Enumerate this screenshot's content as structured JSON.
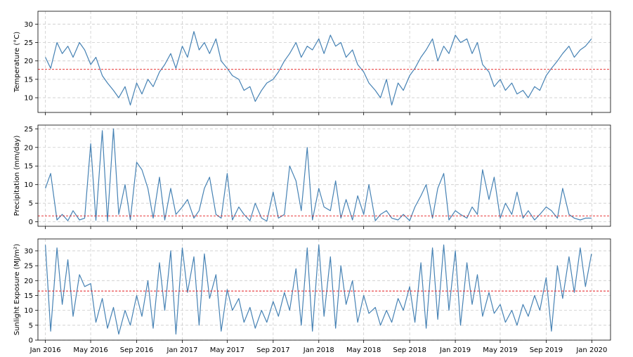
{
  "chart_data": [
    {
      "type": "line",
      "ylabel": "Temperature (°C)",
      "ylim": [
        6,
        33.5
      ],
      "yticks": [
        10,
        15,
        20,
        25,
        30
      ],
      "grid": true,
      "series_color": "#4682b4",
      "reference_line": {
        "value": 17.7,
        "color": "#e31a1c",
        "style": "dashed"
      },
      "series": [
        {
          "x": [
            "2016-01-01",
            "2016-01-15",
            "2016-02-01",
            "2016-02-15",
            "2016-03-01",
            "2016-03-15",
            "2016-04-01",
            "2016-04-15",
            "2016-05-01",
            "2016-05-15",
            "2016-06-01",
            "2016-06-15",
            "2016-07-01",
            "2016-07-15",
            "2016-08-01",
            "2016-08-15",
            "2016-09-01",
            "2016-09-15",
            "2016-10-01",
            "2016-10-15",
            "2016-11-01",
            "2016-11-15",
            "2016-12-01",
            "2016-12-15",
            "2017-01-01",
            "2017-01-15",
            "2017-02-01",
            "2017-02-15",
            "2017-03-01",
            "2017-03-15",
            "2017-04-01",
            "2017-04-15",
            "2017-05-01",
            "2017-05-15",
            "2017-06-01",
            "2017-06-15",
            "2017-07-01",
            "2017-07-15",
            "2017-08-01",
            "2017-08-15",
            "2017-09-01",
            "2017-09-15",
            "2017-10-01",
            "2017-10-15",
            "2017-11-01",
            "2017-11-15",
            "2017-12-01",
            "2017-12-15",
            "2018-01-01",
            "2018-01-15",
            "2018-02-01",
            "2018-02-15",
            "2018-03-01",
            "2018-03-15",
            "2018-04-01",
            "2018-04-15",
            "2018-05-01",
            "2018-05-15",
            "2018-06-01",
            "2018-06-15",
            "2018-07-01",
            "2018-07-15",
            "2018-08-01",
            "2018-08-15",
            "2018-09-01",
            "2018-09-15",
            "2018-10-01",
            "2018-10-15",
            "2018-11-01",
            "2018-11-15",
            "2018-12-01",
            "2018-12-15",
            "2019-01-01",
            "2019-01-15",
            "2019-02-01",
            "2019-02-15",
            "2019-03-01",
            "2019-03-15",
            "2019-04-01",
            "2019-04-15",
            "2019-05-01",
            "2019-05-15",
            "2019-06-01",
            "2019-06-15",
            "2019-07-01",
            "2019-07-15",
            "2019-08-01",
            "2019-08-15",
            "2019-09-01",
            "2019-09-15",
            "2019-10-01",
            "2019-10-15",
            "2019-11-01",
            "2019-11-15",
            "2019-12-01",
            "2019-12-15",
            "2019-12-31"
          ],
          "values": [
            21,
            18,
            25,
            22,
            24,
            21,
            25,
            23,
            19,
            21,
            16,
            14,
            12,
            10,
            13,
            8,
            14,
            11,
            15,
            13,
            17,
            19,
            22,
            18,
            24,
            21,
            28,
            23,
            25,
            22,
            26,
            20,
            18,
            16,
            15,
            12,
            13,
            9,
            12,
            14,
            15,
            17,
            20,
            22,
            25,
            21,
            24,
            23,
            26,
            22,
            27,
            24,
            25,
            21,
            23,
            19,
            17,
            14,
            12,
            10,
            15,
            8,
            14,
            12,
            16,
            18,
            21,
            23,
            26,
            20,
            24,
            22,
            27,
            25,
            26,
            22,
            25,
            19,
            17,
            13,
            15,
            12,
            14,
            11,
            12,
            10,
            13,
            12,
            16,
            18,
            20,
            22,
            24,
            21,
            23,
            24,
            26
          ]
        }
      ]
    },
    {
      "type": "line",
      "ylabel": "Precipitation (mm/day)",
      "ylim": [
        -1.2,
        26
      ],
      "yticks": [
        0,
        5,
        10,
        15,
        20,
        25
      ],
      "grid": true,
      "series_color": "#4682b4",
      "reference_line": {
        "value": 1.6,
        "color": "#e31a1c",
        "style": "dashed"
      },
      "series": [
        {
          "x": [
            "2016-01-01",
            "2016-01-15",
            "2016-02-01",
            "2016-02-15",
            "2016-03-01",
            "2016-03-15",
            "2016-04-01",
            "2016-04-15",
            "2016-05-01",
            "2016-05-15",
            "2016-06-01",
            "2016-06-15",
            "2016-07-01",
            "2016-07-15",
            "2016-08-01",
            "2016-08-15",
            "2016-09-01",
            "2016-09-15",
            "2016-10-01",
            "2016-10-15",
            "2016-11-01",
            "2016-11-15",
            "2016-12-01",
            "2016-12-15",
            "2017-01-01",
            "2017-01-15",
            "2017-02-01",
            "2017-02-15",
            "2017-03-01",
            "2017-03-15",
            "2017-04-01",
            "2017-04-15",
            "2017-05-01",
            "2017-05-15",
            "2017-06-01",
            "2017-06-15",
            "2017-07-01",
            "2017-07-15",
            "2017-08-01",
            "2017-08-15",
            "2017-09-01",
            "2017-09-15",
            "2017-10-01",
            "2017-10-15",
            "2017-11-01",
            "2017-11-15",
            "2017-12-01",
            "2017-12-15",
            "2018-01-01",
            "2018-01-15",
            "2018-02-01",
            "2018-02-15",
            "2018-03-01",
            "2018-03-15",
            "2018-04-01",
            "2018-04-15",
            "2018-05-01",
            "2018-05-15",
            "2018-06-01",
            "2018-06-15",
            "2018-07-01",
            "2018-07-15",
            "2018-08-01",
            "2018-08-15",
            "2018-09-01",
            "2018-09-15",
            "2018-10-01",
            "2018-10-15",
            "2018-11-01",
            "2018-11-15",
            "2018-12-01",
            "2018-12-15",
            "2019-01-01",
            "2019-01-15",
            "2019-02-01",
            "2019-02-15",
            "2019-03-01",
            "2019-03-15",
            "2019-04-01",
            "2019-04-15",
            "2019-05-01",
            "2019-05-15",
            "2019-06-01",
            "2019-06-15",
            "2019-07-01",
            "2019-07-15",
            "2019-08-01",
            "2019-08-15",
            "2019-09-01",
            "2019-09-15",
            "2019-10-01",
            "2019-10-15",
            "2019-11-01",
            "2019-11-15",
            "2019-12-01",
            "2019-12-15",
            "2019-12-31"
          ],
          "values": [
            9,
            13,
            0.5,
            2,
            0.3,
            3,
            0.5,
            1,
            21,
            0.4,
            24.5,
            0.2,
            25,
            2,
            10,
            0.5,
            16,
            14,
            9,
            1,
            12,
            0.5,
            9,
            2,
            4,
            6,
            1,
            3,
            9,
            12,
            2,
            1,
            13,
            0.5,
            4,
            2,
            0.3,
            5,
            1,
            0.2,
            8,
            1,
            2,
            15,
            11,
            3,
            20,
            0.5,
            9,
            4,
            3,
            11,
            1,
            6,
            0.5,
            7,
            2,
            10,
            0.3,
            2,
            3,
            1,
            0.5,
            2,
            0.3,
            4,
            7,
            10,
            1,
            9,
            13,
            0.5,
            3,
            2,
            1,
            4,
            2,
            14,
            6,
            12,
            1,
            5,
            2,
            8,
            1,
            3,
            0.5,
            2,
            4,
            3,
            1,
            9,
            2,
            1,
            0.5,
            1,
            1
          ]
        }
      ]
    },
    {
      "type": "line",
      "ylabel": "Sunlight Exposure (MJ/m²)",
      "ylim": [
        0,
        34
      ],
      "yticks": [
        0,
        5,
        10,
        15,
        20,
        25,
        30
      ],
      "grid": true,
      "series_color": "#4682b4",
      "reference_line": {
        "value": 16.5,
        "color": "#e31a1c",
        "style": "dashed"
      },
      "series": [
        {
          "x": [
            "2016-01-01",
            "2016-01-15",
            "2016-02-01",
            "2016-02-15",
            "2016-03-01",
            "2016-03-15",
            "2016-04-01",
            "2016-04-15",
            "2016-05-01",
            "2016-05-15",
            "2016-06-01",
            "2016-06-15",
            "2016-07-01",
            "2016-07-15",
            "2016-08-01",
            "2016-08-15",
            "2016-09-01",
            "2016-09-15",
            "2016-10-01",
            "2016-10-15",
            "2016-11-01",
            "2016-11-15",
            "2016-12-01",
            "2016-12-15",
            "2017-01-01",
            "2017-01-15",
            "2017-02-01",
            "2017-02-15",
            "2017-03-01",
            "2017-03-15",
            "2017-04-01",
            "2017-04-15",
            "2017-05-01",
            "2017-05-15",
            "2017-06-01",
            "2017-06-15",
            "2017-07-01",
            "2017-07-15",
            "2017-08-01",
            "2017-08-15",
            "2017-09-01",
            "2017-09-15",
            "2017-10-01",
            "2017-10-15",
            "2017-11-01",
            "2017-11-15",
            "2017-12-01",
            "2017-12-15",
            "2018-01-01",
            "2018-01-15",
            "2018-02-01",
            "2018-02-15",
            "2018-03-01",
            "2018-03-15",
            "2018-04-01",
            "2018-04-15",
            "2018-05-01",
            "2018-05-15",
            "2018-06-01",
            "2018-06-15",
            "2018-07-01",
            "2018-07-15",
            "2018-08-01",
            "2018-08-15",
            "2018-09-01",
            "2018-09-15",
            "2018-10-01",
            "2018-10-15",
            "2018-11-01",
            "2018-11-15",
            "2018-12-01",
            "2018-12-15",
            "2019-01-01",
            "2019-01-15",
            "2019-02-01",
            "2019-02-15",
            "2019-03-01",
            "2019-03-15",
            "2019-04-01",
            "2019-04-15",
            "2019-05-01",
            "2019-05-15",
            "2019-06-01",
            "2019-06-15",
            "2019-07-01",
            "2019-07-15",
            "2019-08-01",
            "2019-08-15",
            "2019-09-01",
            "2019-09-15",
            "2019-10-01",
            "2019-10-15",
            "2019-11-01",
            "2019-11-15",
            "2019-12-01",
            "2019-12-15",
            "2019-12-31"
          ],
          "values": [
            32,
            3,
            31,
            12,
            27,
            8,
            22,
            18,
            19,
            6,
            14,
            4,
            11,
            2,
            10,
            5,
            15,
            8,
            20,
            4,
            26,
            10,
            30,
            2,
            31,
            16,
            28,
            5,
            29,
            14,
            22,
            3,
            17,
            10,
            14,
            6,
            11,
            4,
            10,
            6,
            13,
            8,
            16,
            10,
            24,
            5,
            31,
            3,
            32,
            8,
            28,
            4,
            25,
            12,
            20,
            6,
            15,
            9,
            11,
            5,
            10,
            6,
            14,
            10,
            18,
            6,
            26,
            4,
            31,
            7,
            32,
            10,
            30,
            5,
            26,
            12,
            22,
            8,
            16,
            9,
            12,
            6,
            10,
            5,
            12,
            8,
            15,
            10,
            21,
            3,
            25,
            14,
            28,
            16,
            31,
            18,
            29
          ]
        }
      ]
    }
  ],
  "xaxis": {
    "tick_labels": [
      "Jan 2016",
      "May 2016",
      "Sep 2016",
      "Jan 2017",
      "May 2017",
      "Sep 2017",
      "Jan 2018",
      "May 2018",
      "Sep 2018",
      "Jan 2019",
      "May 2019",
      "Sep 2019",
      "Jan 2020"
    ]
  }
}
